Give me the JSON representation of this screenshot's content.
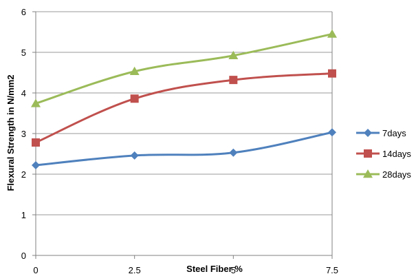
{
  "chart_data": {
    "type": "line",
    "xlabel": "Steel Fiber %",
    "ylabel": "Flexural Strength in N/mm2",
    "x": [
      0,
      2.5,
      5,
      7.5
    ],
    "x_tick_labels": [
      "0",
      "2.5",
      "5",
      "7.5"
    ],
    "y_tick_labels": [
      "0",
      "1",
      "2",
      "3",
      "4",
      "5",
      "6"
    ],
    "ylim": [
      0,
      6
    ],
    "xlim": [
      0,
      7.5
    ],
    "grid": "horizontal",
    "legend": "right",
    "series": [
      {
        "name": "7days",
        "values": [
          2.22,
          2.46,
          2.53,
          3.03
        ],
        "color": "#4F81BD",
        "marker": "diamond"
      },
      {
        "name": "14days",
        "values": [
          2.78,
          3.86,
          4.32,
          4.48
        ],
        "color": "#C0504D",
        "marker": "square"
      },
      {
        "name": "28days",
        "values": [
          3.74,
          4.53,
          4.92,
          5.45
        ],
        "color": "#9BBB59",
        "marker": "triangle"
      }
    ]
  }
}
